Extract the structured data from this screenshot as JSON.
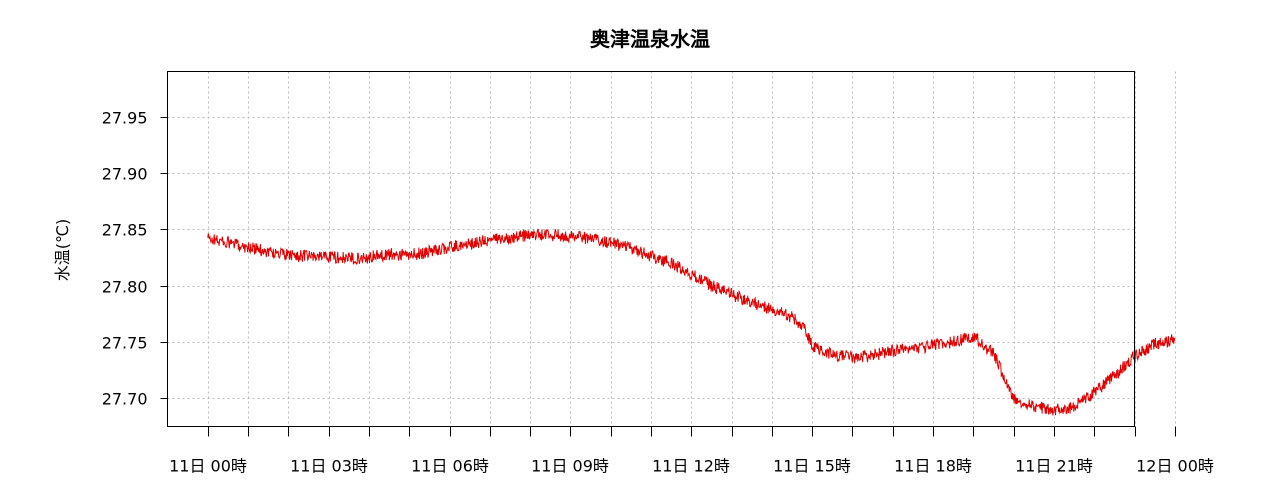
{
  "chart_data": {
    "type": "line",
    "title": "奥津温泉水温",
    "ylabel": "水温(℃)",
    "xlabel": "",
    "ylim": [
      27.675,
      27.99
    ],
    "xlim": [
      -1,
      23
    ],
    "yticks": [
      27.7,
      27.75,
      27.8,
      27.85,
      27.9,
      27.95
    ],
    "ytick_labels": [
      "27.70",
      "27.75",
      "27.80",
      "27.85",
      "27.90",
      "27.95"
    ],
    "xticks_major": [
      0,
      3,
      6,
      9,
      12,
      15,
      18,
      21,
      24
    ],
    "xtick_labels": [
      "11日 00時",
      "11日 03時",
      "11日 06時",
      "11日 09時",
      "11日 12時",
      "11日 15時",
      "11日 18時",
      "11日 21時",
      "12日 00時"
    ],
    "xticks_minor": [
      1,
      2,
      4,
      5,
      7,
      8,
      10,
      11,
      13,
      14,
      16,
      17,
      19,
      20,
      22,
      23
    ],
    "grid": true,
    "series": [
      {
        "color": "#e00000",
        "x": [
          0,
          0.5,
          1,
          1.5,
          2,
          2.5,
          3,
          3.5,
          4,
          4.5,
          5,
          5.5,
          6,
          6.5,
          7,
          7.5,
          8,
          8.5,
          9,
          9.5,
          10,
          10.5,
          11,
          11.5,
          12,
          12.5,
          13,
          13.5,
          14,
          14.5,
          14.8,
          14.9,
          15,
          15.3,
          15.6,
          16,
          16.5,
          17,
          17.5,
          18,
          18.5,
          19,
          19.5,
          20,
          20.5,
          21,
          21.5,
          22,
          22.5,
          23,
          23.5,
          24
        ],
        "y": [
          27.842,
          27.838,
          27.834,
          27.83,
          27.827,
          27.826,
          27.826,
          27.824,
          27.825,
          27.828,
          27.827,
          27.83,
          27.834,
          27.837,
          27.84,
          27.843,
          27.845,
          27.845,
          27.844,
          27.842,
          27.838,
          27.833,
          27.826,
          27.82,
          27.81,
          27.8,
          27.792,
          27.785,
          27.779,
          27.772,
          27.763,
          27.755,
          27.746,
          27.742,
          27.738,
          27.736,
          27.738,
          27.742,
          27.744,
          27.747,
          27.75,
          27.755,
          27.74,
          27.7,
          27.693,
          27.69,
          27.692,
          27.705,
          27.72,
          27.737,
          27.748,
          27.752
        ]
      }
    ]
  }
}
